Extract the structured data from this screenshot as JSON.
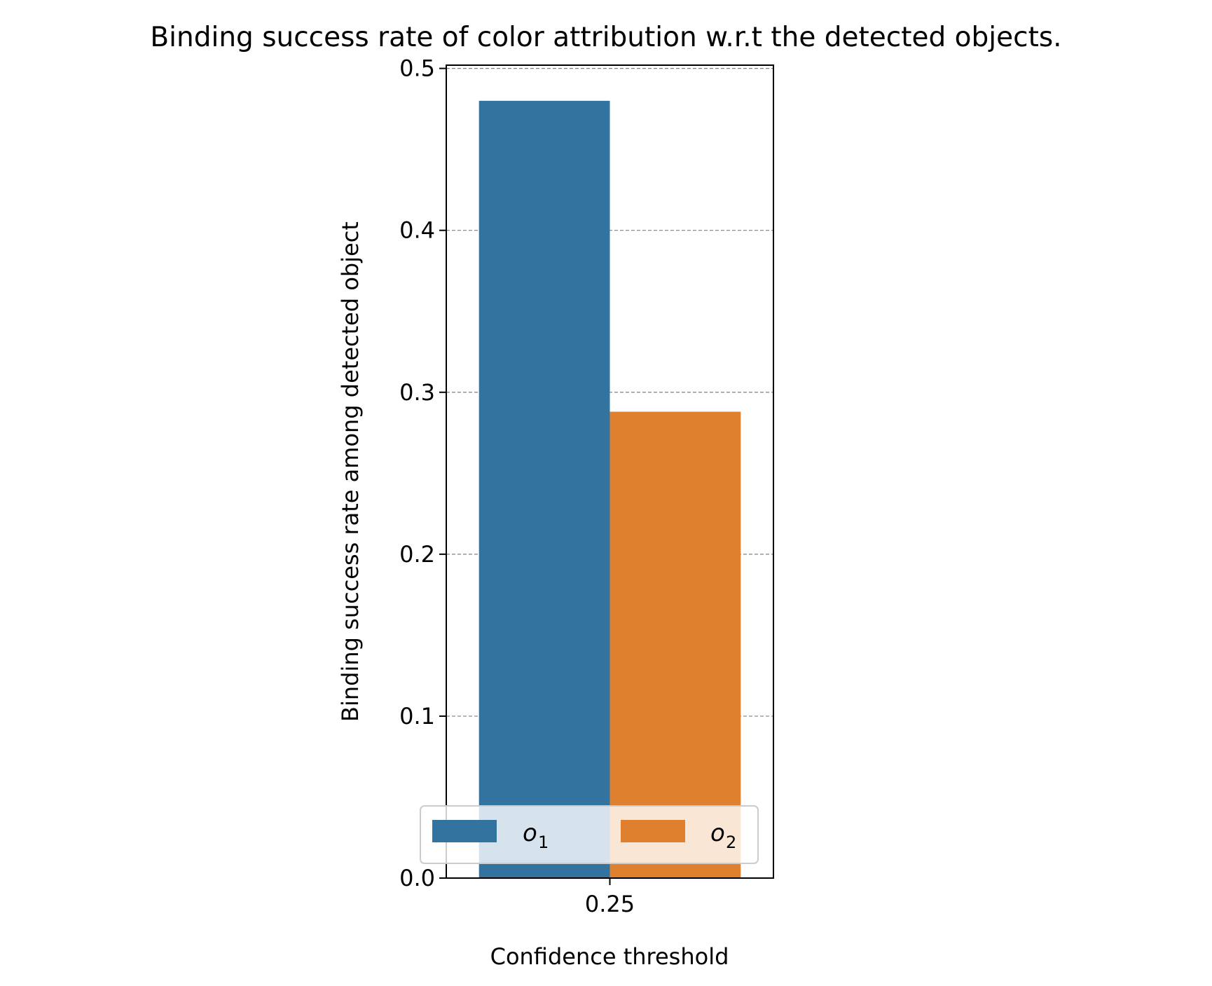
{
  "chart_data": {
    "type": "bar",
    "title": "Binding success rate of color attribution w.r.t the detected objects.",
    "xlabel": "Confidence threshold",
    "ylabel": "Binding success rate among detected object",
    "categories": [
      "0.25"
    ],
    "series": [
      {
        "name": "o",
        "subscript": "1",
        "color": "#32749f",
        "values": [
          0.48
        ]
      },
      {
        "name": "o",
        "subscript": "2",
        "color": "#df802e",
        "values": [
          0.288
        ]
      }
    ],
    "ylim": [
      0,
      0.502
    ],
    "yticks": [
      0.0,
      0.1,
      0.2,
      0.3,
      0.4,
      0.5
    ],
    "ytick_labels": [
      "0.0",
      "0.1",
      "0.2",
      "0.3",
      "0.4",
      "0.5"
    ],
    "grid": {
      "axis": "y",
      "style": "dashed",
      "color": "#808080"
    },
    "legend": {
      "placement": "lower center",
      "ncol": 2
    }
  }
}
